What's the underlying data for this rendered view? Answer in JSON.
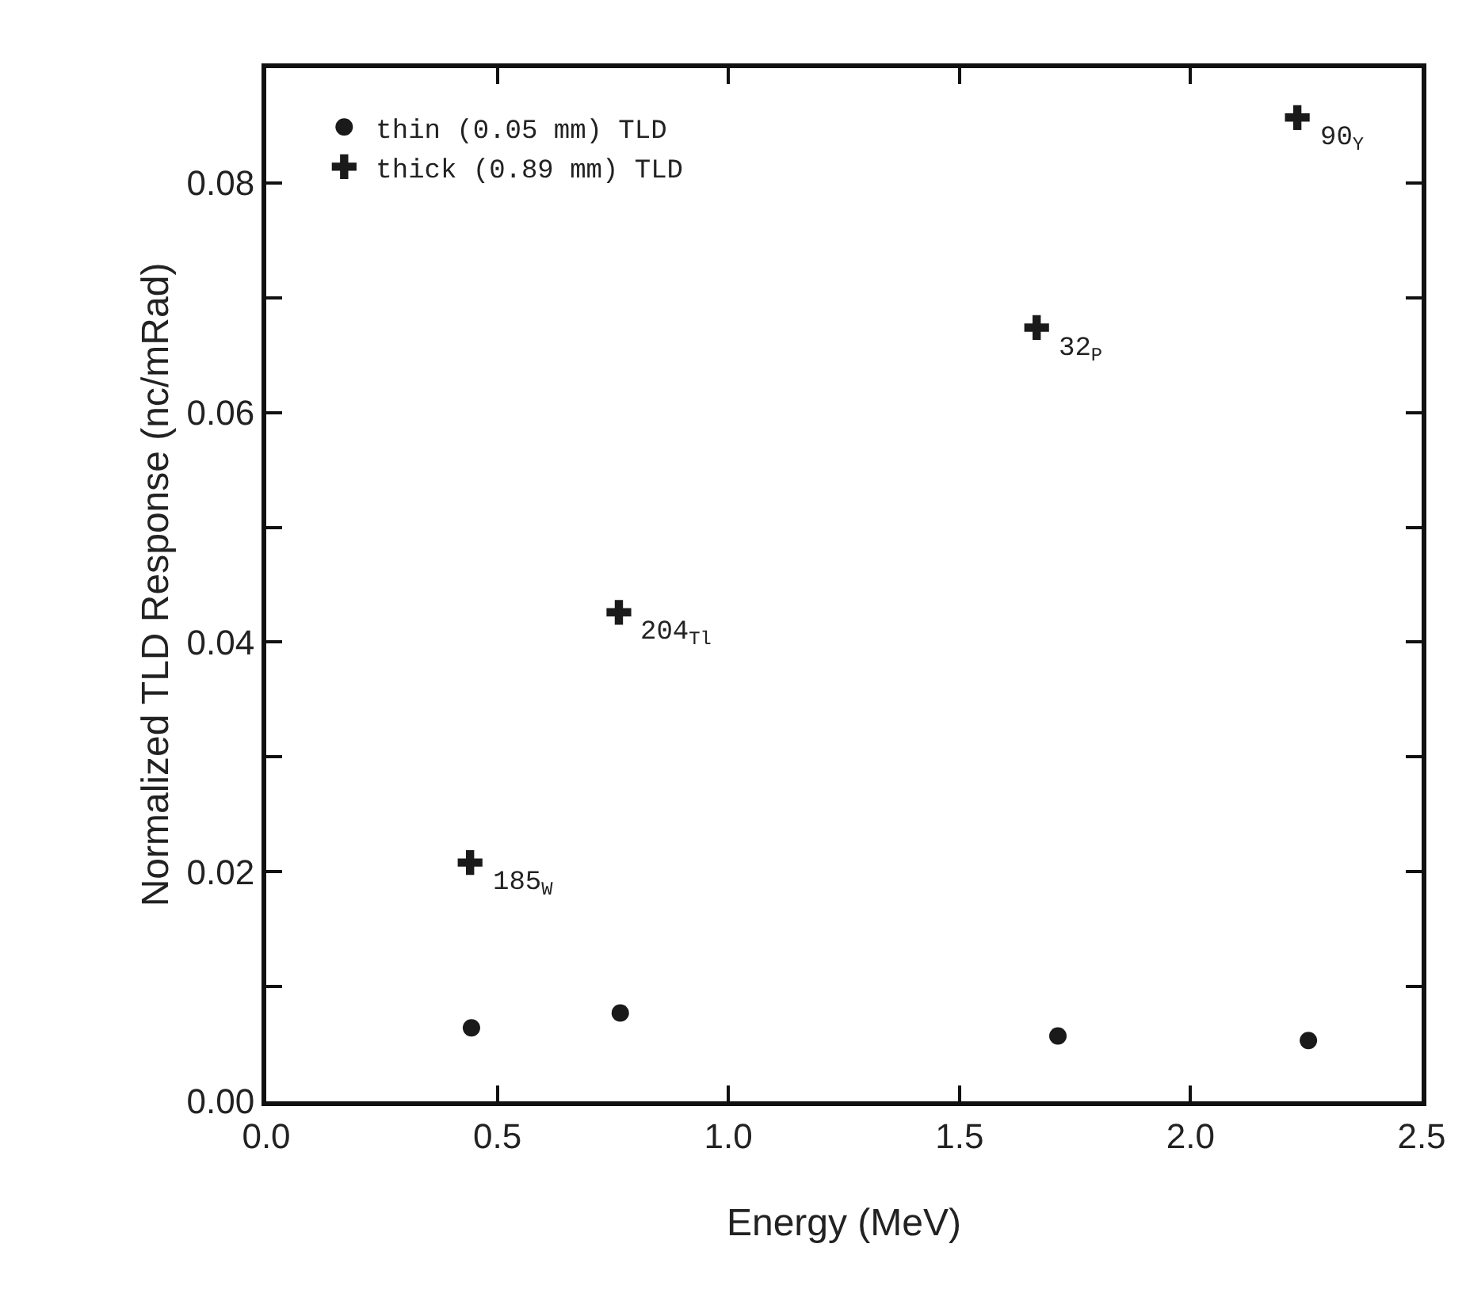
{
  "chart_data": {
    "type": "scatter",
    "xlabel": "Energy (MeV)",
    "ylabel": "Normalized TLD Response (nc/mRad)",
    "series": [
      {
        "name": "thin (0.05 mm) TLD",
        "color": "#1a1a1a",
        "marker": "circle",
        "x": [
          0.444,
          0.766,
          1.713,
          2.255
        ],
        "values": [
          0.0064,
          0.0077,
          0.0057,
          0.0053
        ]
      },
      {
        "name": "thick (0.89 mm) TLD",
        "color": "#1a1a1a",
        "marker": "cross",
        "x": [
          0.441,
          0.763,
          1.667,
          2.231
        ],
        "values": [
          0.0208,
          0.0426,
          0.0674,
          0.0857
        ]
      }
    ],
    "annotations": [
      {
        "text": "185$_{W}$",
        "x": 0.441,
        "y": 0.0208
      },
      {
        "text": "204$_{Tl}$",
        "x": 0.763,
        "y": 0.0426
      },
      {
        "text": "32$_{P}$",
        "x": 1.667,
        "y": 0.0674
      },
      {
        "text": "90$_{Y}$",
        "x": 2.231,
        "y": 0.0857
      }
    ],
    "xlim": [
      0,
      2.5
    ],
    "xticks": [
      {
        "value": 0,
        "label": "0.0"
      },
      0.5,
      {
        "value": 1,
        "label": "1.0"
      },
      1.5,
      {
        "value": 2,
        "label": "2.0"
      },
      2.5
    ],
    "ylim": [
      0,
      0.09
    ],
    "yticks": [
      {
        "value": 0,
        "label": "0.00"
      },
      {
        "value": 0.01,
        "label": null
      },
      0.02,
      {
        "value": 0.03,
        "label": null
      },
      0.04,
      {
        "value": 0.05,
        "label": null
      },
      0.06,
      {
        "value": 0.07,
        "label": null
      },
      0.08
    ],
    "legend": "top left"
  }
}
